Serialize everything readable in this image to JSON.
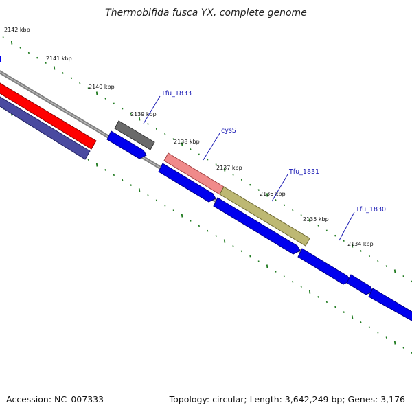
{
  "title": "Thermobifida fusca YX, complete genome",
  "footer": {
    "accession": "Accession: NC_007333",
    "topology": "Topology: circular; Length: 3,642,249 bp; Genes: 3,176"
  },
  "colors": {
    "backbone": "#7a7a7a",
    "tick": "#1f7a1f",
    "cds_blue": "#0000ee",
    "label": "#1a1ab4"
  },
  "kbp_labels": [
    "2142 kbp",
    "2141 kbp",
    "2140 kbp",
    "2139 kbp",
    "2138 kbp",
    "2137 kbp",
    "2136 kbp",
    "2135 kbp",
    "2134 kbp"
  ],
  "gene_labels": [
    "Tfu_1833",
    "cysS",
    "Tfu_1831",
    "Tfu_1830"
  ]
}
